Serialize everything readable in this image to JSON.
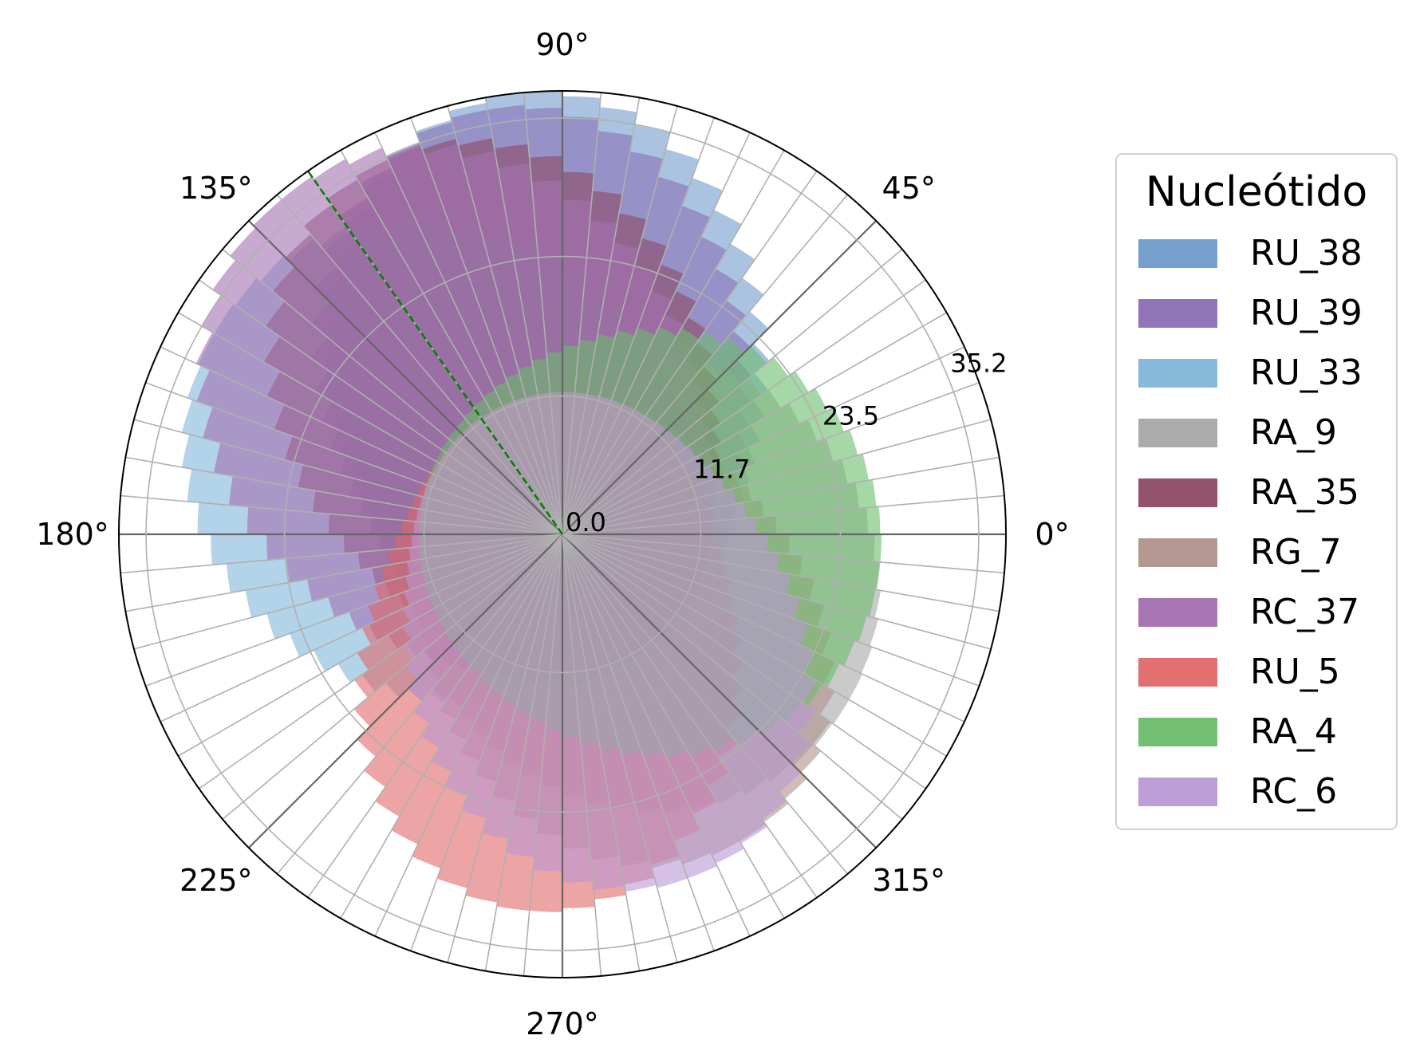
{
  "chart_data": {
    "type": "polar-bar",
    "angle_ticks": [
      "0°",
      "45°",
      "90°",
      "135°",
      "180°",
      "225°",
      "270°",
      "315°"
    ],
    "angle_tick_degrees": [
      0,
      45,
      90,
      135,
      180,
      225,
      270,
      315
    ],
    "radial_ticks": [
      "0.0",
      "11.7",
      "23.5",
      "35.2"
    ],
    "radial_tick_values": [
      0.0,
      11.7,
      23.5,
      35.2
    ],
    "rlim": [
      0,
      37.5
    ],
    "bin_width_deg": 5,
    "grid": true,
    "reference_line": {
      "angle_deg": 125,
      "color": "#008000",
      "style": "dashed"
    },
    "legend": {
      "title": "Nucleótido",
      "placement": "right",
      "entries": [
        "RU_38",
        "RU_39",
        "RU_33",
        "RA_9",
        "RA_35",
        "RG_7",
        "RC_37",
        "RU_5",
        "RA_4",
        "RC_6"
      ]
    },
    "series": [
      {
        "name": "RU_38",
        "color": "#6f9bcb",
        "center_deg": 95,
        "max_r": 37.5,
        "min_r": 13,
        "spread": 55
      },
      {
        "name": "RU_39",
        "color": "#8a6fb5",
        "center_deg": 100,
        "max_r": 36.5,
        "min_r": 13,
        "spread": 55
      },
      {
        "name": "RU_33",
        "color": "#7fb5d8",
        "center_deg": 150,
        "max_r": 34,
        "min_r": 12,
        "spread": 70
      },
      {
        "name": "RA_9",
        "color": "#a6a6a6",
        "center_deg": 330,
        "max_r": 28,
        "min_r": 12,
        "spread": 85
      },
      {
        "name": "RA_35",
        "color": "#8e4a65",
        "center_deg": 115,
        "max_r": 35,
        "min_r": 12,
        "spread": 60
      },
      {
        "name": "RG_7",
        "color": "#b0918a",
        "center_deg": 300,
        "max_r": 30,
        "min_r": 12,
        "spread": 60
      },
      {
        "name": "RC_37",
        "color": "#a46fb0",
        "center_deg": 130,
        "max_r": 37,
        "min_r": 12,
        "spread": 65
      },
      {
        "name": "RU_5",
        "color": "#e06868",
        "center_deg": 265,
        "max_r": 32,
        "min_r": 12,
        "spread": 55
      },
      {
        "name": "RA_4",
        "color": "#6bbd6b",
        "center_deg": 355,
        "max_r": 27,
        "min_r": 12,
        "spread": 80
      },
      {
        "name": "RC_6",
        "color": "#b998d4",
        "center_deg": 290,
        "max_r": 31,
        "min_r": 12,
        "spread": 60
      }
    ]
  }
}
